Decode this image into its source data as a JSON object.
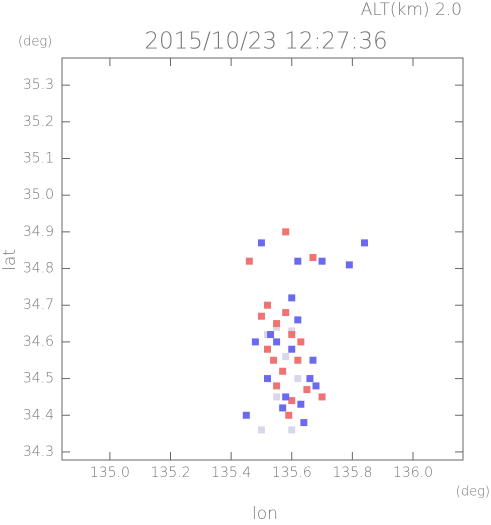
{
  "chart_data": {
    "type": "scatter",
    "title": "2015/10/23 12:27:36",
    "subtitle": "ALT(km) 2.0",
    "y_unit": "(deg)",
    "x_unit": "(deg)",
    "xlabel": "lon",
    "ylabel": "lat",
    "xlim": [
      134.842,
      136.165
    ],
    "ylim": [
      34.278,
      35.374
    ],
    "xticks": [
      {
        "value": 135,
        "label": "135.0"
      },
      135.2,
      135.4,
      135.6,
      135.8,
      {
        "value": 136,
        "label": "136.0"
      }
    ],
    "yticks": [
      34.3,
      34.4,
      34.5,
      34.6,
      34.7,
      34.8,
      34.9,
      {
        "value": 35,
        "label": "35.0"
      },
      35.1,
      35.2,
      35.3
    ],
    "series": [
      {
        "color": "#d8d8ea",
        "x": [
          135.55,
          135.6,
          135.58,
          135.52,
          135.62,
          135.55,
          135.6,
          135.5
        ],
        "y": [
          34.64,
          34.63,
          34.56,
          34.62,
          34.5,
          34.45,
          34.36,
          34.36
        ]
      },
      {
        "color": "#f07272",
        "x": [
          135.58,
          135.55,
          135.6,
          135.52,
          135.5,
          135.62,
          135.57,
          135.65,
          135.6,
          135.55,
          135.63,
          135.58,
          135.67,
          135.46,
          135.54,
          135.7,
          135.59,
          135.52
        ],
        "y": [
          34.68,
          34.65,
          34.62,
          34.58,
          34.67,
          34.55,
          34.52,
          34.47,
          34.44,
          34.48,
          34.6,
          34.9,
          34.83,
          34.82,
          34.55,
          34.45,
          34.4,
          34.7
        ]
      },
      {
        "color": "#6a6af0",
        "x": [
          135.53,
          135.62,
          135.6,
          135.66,
          135.68,
          135.63,
          135.57,
          135.52,
          135.48,
          135.55,
          135.64,
          135.58,
          135.7,
          135.62,
          135.84,
          135.79,
          135.5,
          135.6,
          135.45,
          135.67
        ],
        "y": [
          34.62,
          34.66,
          34.58,
          34.5,
          34.48,
          34.43,
          34.42,
          34.5,
          34.6,
          34.6,
          34.38,
          34.45,
          34.82,
          34.82,
          34.87,
          34.81,
          34.87,
          34.72,
          34.4,
          34.55
        ]
      }
    ]
  }
}
